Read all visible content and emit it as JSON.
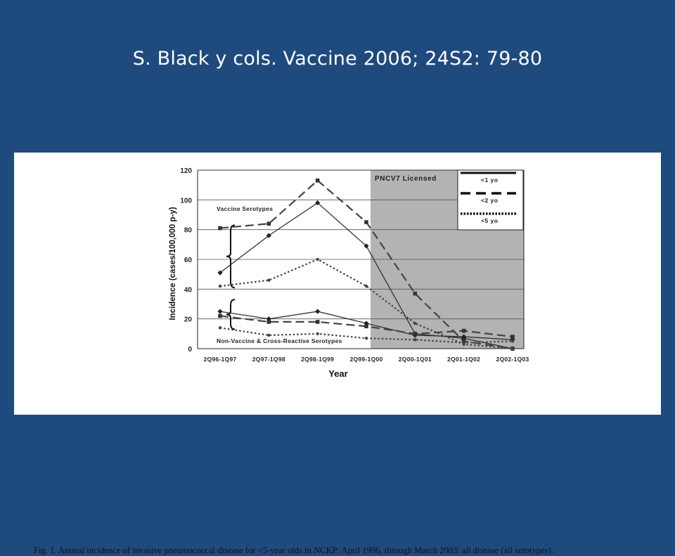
{
  "slide": {
    "title": "S. Black y cols. Vaccine 2006; 24S2: 79-80",
    "background": "#1f4a7e"
  },
  "figure": {
    "caption": "Fig. 1.  Annual incidence of invasive pneumococcal disease for <5-year olds in NCKP: April 1996, through March 2003: all disease (all serotypes)."
  },
  "chart_data": {
    "type": "line",
    "categories": [
      "2Q96-1Q97",
      "2Q97-1Q98",
      "2Q98-1Q99",
      "2Q99-1Q00",
      "2Q00-1Q01",
      "2Q01-1Q02",
      "2Q02-1Q03"
    ],
    "xlabel": "Year",
    "ylabel": "Incidence (cases/100,000 p-y)",
    "ylim": [
      0,
      120
    ],
    "yticks": [
      0,
      20,
      40,
      60,
      80,
      100,
      120
    ],
    "grid": "horizontal",
    "shaded_region": {
      "label": "PNCV7 Licensed",
      "from_category": "2Q99-1Q00",
      "color": "#b3b3b3"
    },
    "legend": {
      "position": "top-right",
      "entries": [
        {
          "label": "<1 yo",
          "style": "solid"
        },
        {
          "label": "<2 yo",
          "style": "dashed"
        },
        {
          "label": "<5 yo",
          "style": "dotted"
        }
      ]
    },
    "group_labels": [
      {
        "text": "Vaccine Serotypes"
      },
      {
        "text": "Non-Vaccine & Cross-Reactive Serotypes"
      }
    ],
    "series": [
      {
        "group": "vaccine",
        "style": "solid",
        "values": [
          51,
          76,
          98,
          69,
          10,
          7,
          0
        ]
      },
      {
        "group": "vaccine",
        "style": "dashed",
        "values": [
          81,
          84,
          113,
          85,
          37,
          5,
          0
        ]
      },
      {
        "group": "vaccine",
        "style": "dotted",
        "values": [
          42,
          46,
          60,
          42,
          17,
          3,
          0
        ]
      },
      {
        "group": "non-vaccine",
        "style": "solid",
        "values": [
          25,
          20,
          25,
          17,
          9,
          8,
          6
        ]
      },
      {
        "group": "non-vaccine",
        "style": "dashed",
        "values": [
          22,
          18,
          18,
          15,
          10,
          12,
          8
        ]
      },
      {
        "group": "non-vaccine",
        "style": "dotted",
        "values": [
          14,
          9,
          10,
          7,
          6,
          4,
          5
        ]
      }
    ]
  }
}
